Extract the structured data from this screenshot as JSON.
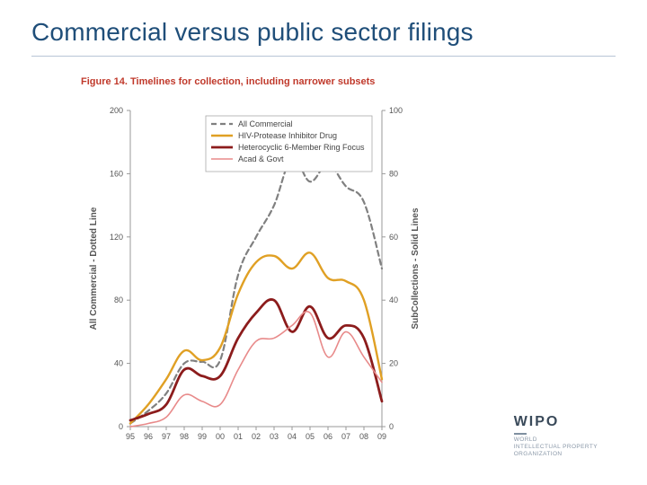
{
  "slide": {
    "title_text": "Commercial versus public sector filings",
    "title_color": "#1f4e79",
    "title_fontsize": 28,
    "rule_color": "#b8c5d6"
  },
  "figure_caption": {
    "text": "Figure 14. Timelines for collection, including narrower subsets",
    "color": "#c0392b",
    "fontsize": 11,
    "fontweight": "bold"
  },
  "chart": {
    "type": "line",
    "background_color": "#ffffff",
    "plot_border_color": "#999999",
    "plot_border_width": 1,
    "font_family": "Arial",
    "tick_fontsize": 9,
    "tick_color": "#555555",
    "axis_label_fontsize": 10,
    "axis_label_color": "#555555",
    "x": {
      "values": [
        95,
        96,
        97,
        98,
        99,
        0,
        1,
        2,
        3,
        4,
        5,
        6,
        7,
        8,
        9
      ],
      "labels": [
        "95",
        "96",
        "97",
        "98",
        "99",
        "00",
        "01",
        "02",
        "03",
        "04",
        "05",
        "06",
        "07",
        "08",
        "09"
      ]
    },
    "y_left": {
      "label": "All Commercial - Dotted Line",
      "min": 0,
      "max": 200,
      "ticks": [
        0,
        40,
        80,
        120,
        160,
        200
      ]
    },
    "y_right": {
      "label": "SubCollections - Solid Lines",
      "min": 0,
      "max": 100,
      "ticks": [
        0,
        20,
        40,
        60,
        80,
        100
      ]
    },
    "legend": {
      "position": "top-inside",
      "border_color": "#aaaaaa",
      "bg": "#ffffff",
      "fontsize": 9
    },
    "series": [
      {
        "name": "All Commercial",
        "axis": "left",
        "color": "#808080",
        "width": 2.2,
        "dash": "6,4",
        "y": [
          2,
          10,
          21,
          40,
          41,
          42,
          96,
          120,
          140,
          170,
          155,
          166,
          152,
          142,
          100
        ]
      },
      {
        "name": "HIV-Protease Inhibitor Drug",
        "axis": "right",
        "color": "#e0a024",
        "width": 2.4,
        "dash": "none",
        "y": [
          1,
          7,
          15,
          24,
          21,
          25,
          42,
          52,
          54,
          50,
          55,
          47,
          46,
          40,
          15
        ]
      },
      {
        "name": "Heterocyclic 6-Member Ring Focus",
        "axis": "right",
        "color": "#8c1c1c",
        "width": 2.8,
        "dash": "none",
        "y": [
          2,
          4,
          7,
          18,
          16,
          16,
          28,
          36,
          40,
          30,
          38,
          28,
          32,
          28,
          8
        ]
      },
      {
        "name": "Acad & Govt",
        "axis": "right",
        "color": "#e88a8a",
        "width": 1.6,
        "dash": "none",
        "y": [
          0,
          1,
          3,
          10,
          8,
          7,
          18,
          27,
          28,
          32,
          36,
          22,
          30,
          22,
          14
        ]
      }
    ]
  },
  "wipo": {
    "logo": "WIPO",
    "logo_color": "#3a4a5a",
    "line1": "WORLD",
    "line2": "INTELLECTUAL PROPERTY",
    "line3": "ORGANIZATION",
    "sub_color": "#8a98a8"
  }
}
